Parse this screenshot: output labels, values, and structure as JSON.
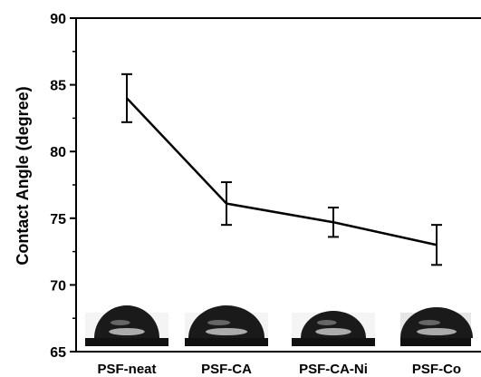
{
  "chart_data": {
    "type": "line",
    "title": "",
    "xlabel": "",
    "ylabel": "Contact Angle (degree)",
    "categories": [
      "PSF-neat",
      "PSF-CA",
      "PSF-CA-Ni",
      "PSF-Co"
    ],
    "values": [
      84.0,
      76.1,
      74.7,
      73.0
    ],
    "error": [
      1.8,
      1.6,
      1.1,
      1.5
    ],
    "ylim": [
      65,
      90
    ],
    "yticks": [
      65,
      70,
      75,
      80,
      85,
      90
    ],
    "grid": false,
    "legend": "none",
    "line_color": "#000000",
    "droplet_images": [
      {
        "category": "PSF-neat",
        "icon": "contact-angle-droplet-image"
      },
      {
        "category": "PSF-CA",
        "icon": "contact-angle-droplet-image"
      },
      {
        "category": "PSF-CA-Ni",
        "icon": "contact-angle-droplet-image"
      },
      {
        "category": "PSF-Co",
        "icon": "contact-angle-droplet-image"
      }
    ]
  }
}
